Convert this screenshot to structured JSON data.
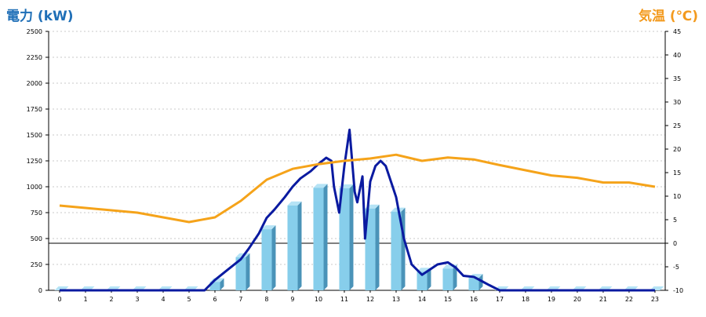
{
  "chart_data": {
    "type": "bar+line",
    "title_left": "電力 (kW)",
    "title_right": "気温 (℃)",
    "colors": {
      "bar": "#87ceeb",
      "bar_side": "#4a93b8",
      "bar_top": "#b5e3f5",
      "power_line": "#0a1aa0",
      "temp_line": "#f5a31a",
      "title_left": "#1f6fb7",
      "title_right": "#f39a1e",
      "grid": "#c8c8c8",
      "zero_line": "#000000"
    },
    "categories": [
      "0",
      "1",
      "2",
      "3",
      "4",
      "5",
      "6",
      "7",
      "8",
      "9",
      "10",
      "11",
      "12",
      "13",
      "14",
      "15",
      "16",
      "17",
      "18",
      "19",
      "20",
      "21",
      "22",
      "23"
    ],
    "ylim_left": [
      0,
      2500
    ],
    "yticks_left": [
      "0",
      "250",
      "500",
      "750",
      "1000",
      "1250",
      "1500",
      "1750",
      "2000",
      "2250",
      "2500"
    ],
    "ylim_right": [
      -10,
      45
    ],
    "yticks_right": [
      "-10",
      "-5",
      "0",
      "5",
      "10",
      "15",
      "20",
      "25",
      "30",
      "35",
      "40",
      "45"
    ],
    "grid": true,
    "series": [
      {
        "kind": "bar",
        "axis": "left",
        "values": [
          0,
          0,
          0,
          0,
          0,
          0,
          80,
          320,
          590,
          820,
          990,
          985,
          790,
          760,
          180,
          210,
          120,
          0,
          0,
          0,
          0,
          0,
          0,
          0
        ]
      },
      {
        "kind": "line",
        "axis": "left",
        "x": [
          0,
          5.6,
          6,
          6.5,
          7,
          7.3,
          7.7,
          8,
          8.3,
          8.7,
          9,
          9.3,
          9.7,
          10,
          10.3,
          10.5,
          10.6,
          10.8,
          11,
          11.2,
          11.4,
          11.5,
          11.7,
          11.8,
          12,
          12.2,
          12.4,
          12.6,
          12.8,
          13,
          13.3,
          13.6,
          14,
          14.3,
          14.6,
          15,
          15.3,
          15.6,
          16,
          16.3,
          16.6,
          17,
          23
        ],
        "values": [
          0,
          0,
          100,
          200,
          300,
          400,
          550,
          700,
          780,
          900,
          1000,
          1080,
          1150,
          1220,
          1280,
          1250,
          1000,
          750,
          1200,
          1550,
          950,
          850,
          1100,
          500,
          1050,
          1200,
          1250,
          1200,
          1050,
          900,
          500,
          250,
          150,
          200,
          250,
          270,
          220,
          140,
          130,
          90,
          50,
          0,
          0
        ]
      },
      {
        "kind": "line",
        "axis": "right",
        "x": [
          0,
          1,
          2,
          3,
          4,
          5,
          6,
          7,
          8,
          9,
          10,
          11,
          12,
          13,
          14,
          15,
          16,
          17,
          18,
          19,
          20,
          21,
          22,
          23
        ],
        "values": [
          8,
          7.5,
          7,
          6.5,
          5.5,
          4.5,
          5.5,
          9,
          13.5,
          15.8,
          16.8,
          17.5,
          18,
          18.8,
          17.5,
          18.2,
          17.8,
          16.6,
          15.5,
          14.4,
          13.9,
          12.9,
          12.9,
          12
        ]
      }
    ]
  }
}
